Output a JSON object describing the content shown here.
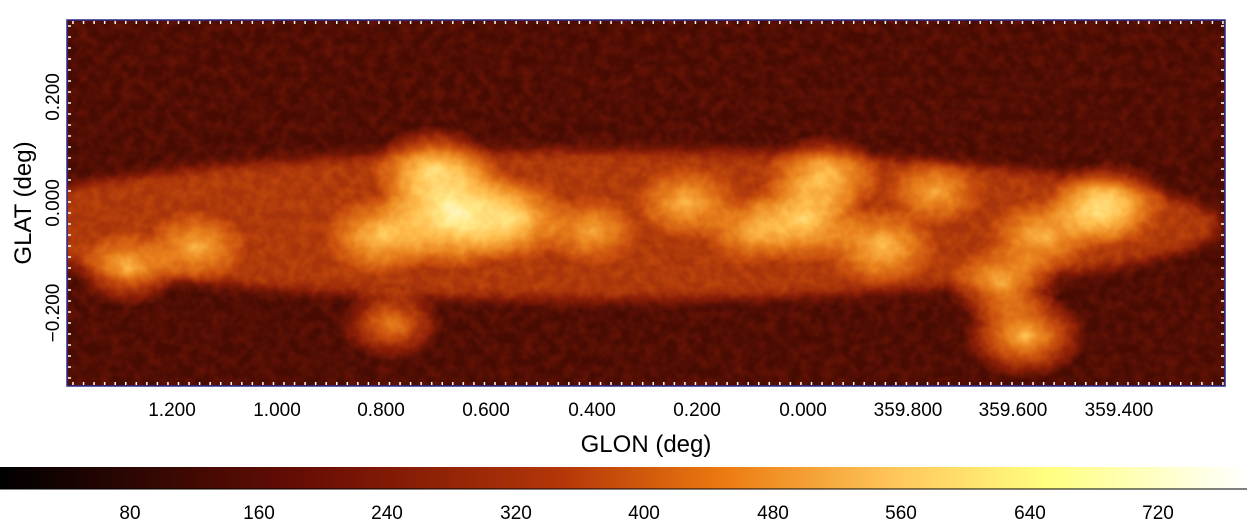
{
  "chart_data": {
    "type": "heatmap",
    "xlabel": "GLON (deg)",
    "ylabel": "GLAT (deg)",
    "xlim": [
      1.4,
      359.2
    ],
    "ylim": [
      -0.35,
      0.35
    ],
    "x_ticks": [
      "1.200",
      "1.000",
      "0.800",
      "0.600",
      "0.400",
      "0.200",
      "0.000",
      "359.800",
      "359.600",
      "359.400"
    ],
    "y_ticks": [
      "0.200",
      "0.000",
      "−0.200"
    ],
    "colorbar": {
      "colormap": "heat",
      "range": [
        0,
        770
      ],
      "ticks": [
        "80",
        "160",
        "240",
        "320",
        "400",
        "480",
        "560",
        "640",
        "720"
      ]
    },
    "colors": {
      "frame": "#2a2a8c",
      "tick_marks": "#ffffff",
      "background_emission": "#2a0903"
    },
    "emission_features": [
      {
        "glon": 1.28,
        "glat": -0.12,
        "level": 0.48
      },
      {
        "glon": 1.15,
        "glat": -0.08,
        "level": 0.45
      },
      {
        "glon": 0.8,
        "glat": -0.06,
        "level": 0.55
      },
      {
        "glon": 0.66,
        "glat": -0.02,
        "level": 0.85
      },
      {
        "glon": 0.7,
        "glat": 0.06,
        "level": 0.62
      },
      {
        "glon": 0.55,
        "glat": -0.03,
        "level": 0.58
      },
      {
        "glon": 0.78,
        "glat": -0.22,
        "level": 0.45
      },
      {
        "glon": 0.4,
        "glat": -0.05,
        "level": 0.42
      },
      {
        "glon": 0.22,
        "glat": 0.0,
        "level": 0.48
      },
      {
        "glon": 0.1,
        "glat": -0.05,
        "level": 0.42
      },
      {
        "glon": 0.0,
        "glat": -0.03,
        "level": 0.62
      },
      {
        "glon": 359.96,
        "glat": 0.05,
        "level": 0.55
      },
      {
        "glon": 359.85,
        "glat": -0.08,
        "level": 0.52
      },
      {
        "glon": 359.75,
        "glat": 0.02,
        "level": 0.42
      },
      {
        "glon": 359.62,
        "glat": -0.15,
        "level": 0.52
      },
      {
        "glon": 359.58,
        "glat": -0.24,
        "level": 0.6
      },
      {
        "glon": 359.55,
        "glat": -0.06,
        "level": 0.48
      },
      {
        "glon": 359.45,
        "glat": -0.02,
        "level": 0.45
      },
      {
        "glon": 359.42,
        "glat": 0.0,
        "level": 0.55
      }
    ]
  }
}
